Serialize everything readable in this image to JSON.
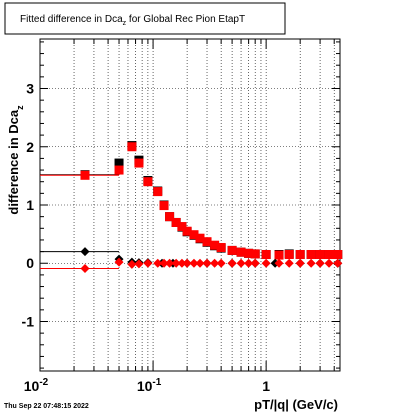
{
  "chart_data": {
    "type": "scatter",
    "title": "Fitted difference in Dca",
    "title_sub": "z",
    "title_suffix": " for Global Rec Pion EtapT",
    "xlabel": "pT/|q| (GeV/c)",
    "ylabel": "difference in Dca",
    "ylabel_sub": "z",
    "x_scale": "log",
    "xlim": [
      0.01,
      4.5
    ],
    "ylim": [
      -1.85,
      3.85
    ],
    "grid": true,
    "x_ticks": [
      {
        "value": 0.01,
        "label": "10",
        "exp": "-2"
      },
      {
        "value": 0.1,
        "label": "10",
        "exp": "-1"
      },
      {
        "value": 1,
        "label": "1",
        "exp": ""
      }
    ],
    "y_ticks": [
      {
        "value": -1,
        "label": "-1"
      },
      {
        "value": 0,
        "label": "0"
      },
      {
        "value": 1,
        "label": "1"
      },
      {
        "value": 2,
        "label": "2"
      },
      {
        "value": 3,
        "label": "3"
      }
    ],
    "series": [
      {
        "color": "#000000",
        "marker": "square",
        "points": [
          {
            "x": 0.025,
            "y": 1.52,
            "xerr_lo": 0.015,
            "xerr_hi": 0.025
          },
          {
            "x": 0.05,
            "y": 1.72
          },
          {
            "x": 0.065,
            "y": 2.02
          },
          {
            "x": 0.075,
            "y": 1.77
          },
          {
            "x": 0.09,
            "y": 1.42
          },
          {
            "x": 0.11,
            "y": 1.24
          },
          {
            "x": 0.125,
            "y": 1.0
          },
          {
            "x": 0.14,
            "y": 0.8
          },
          {
            "x": 0.16,
            "y": 0.7
          },
          {
            "x": 0.18,
            "y": 0.62
          },
          {
            "x": 0.2,
            "y": 0.54
          },
          {
            "x": 0.23,
            "y": 0.48
          },
          {
            "x": 0.26,
            "y": 0.42
          },
          {
            "x": 0.3,
            "y": 0.36
          },
          {
            "x": 0.35,
            "y": 0.3
          },
          {
            "x": 0.4,
            "y": 0.26
          },
          {
            "x": 0.5,
            "y": 0.22
          },
          {
            "x": 0.6,
            "y": 0.19
          },
          {
            "x": 0.7,
            "y": 0.17
          },
          {
            "x": 0.8,
            "y": 0.16
          },
          {
            "x": 1.0,
            "y": 0.15
          },
          {
            "x": 1.3,
            "y": 0.15
          },
          {
            "x": 1.6,
            "y": 0.16
          },
          {
            "x": 2.0,
            "y": 0.15
          },
          {
            "x": 2.5,
            "y": 0.15
          },
          {
            "x": 3.0,
            "y": 0.15
          },
          {
            "x": 3.6,
            "y": 0.15
          },
          {
            "x": 4.3,
            "y": 0.15
          }
        ]
      },
      {
        "color": "#ff0000",
        "marker": "square",
        "points": [
          {
            "x": 0.025,
            "y": 1.51,
            "xerr_lo": 0.015,
            "xerr_hi": 0.025
          },
          {
            "x": 0.05,
            "y": 1.6
          },
          {
            "x": 0.065,
            "y": 2.0
          },
          {
            "x": 0.075,
            "y": 1.72
          },
          {
            "x": 0.09,
            "y": 1.4
          },
          {
            "x": 0.11,
            "y": 1.23
          },
          {
            "x": 0.125,
            "y": 0.99
          },
          {
            "x": 0.14,
            "y": 0.8
          },
          {
            "x": 0.16,
            "y": 0.7
          },
          {
            "x": 0.18,
            "y": 0.63
          },
          {
            "x": 0.2,
            "y": 0.55
          },
          {
            "x": 0.23,
            "y": 0.49
          },
          {
            "x": 0.26,
            "y": 0.43
          },
          {
            "x": 0.3,
            "y": 0.37
          },
          {
            "x": 0.35,
            "y": 0.31
          },
          {
            "x": 0.4,
            "y": 0.27
          },
          {
            "x": 0.5,
            "y": 0.22
          },
          {
            "x": 0.6,
            "y": 0.19
          },
          {
            "x": 0.7,
            "y": 0.17
          },
          {
            "x": 0.8,
            "y": 0.16
          },
          {
            "x": 1.0,
            "y": 0.15
          },
          {
            "x": 1.3,
            "y": 0.14
          },
          {
            "x": 1.6,
            "y": 0.15
          },
          {
            "x": 2.0,
            "y": 0.15
          },
          {
            "x": 2.5,
            "y": 0.15
          },
          {
            "x": 3.0,
            "y": 0.15
          },
          {
            "x": 3.6,
            "y": 0.15
          },
          {
            "x": 4.3,
            "y": 0.15
          }
        ]
      },
      {
        "color": "#000000",
        "marker": "diamond",
        "points": [
          {
            "x": 0.025,
            "y": 0.2,
            "xerr_lo": 0.015,
            "xerr_hi": 0.025
          },
          {
            "x": 0.05,
            "y": 0.07
          },
          {
            "x": 0.065,
            "y": 0.02
          },
          {
            "x": 0.075,
            "y": 0.01
          },
          {
            "x": 0.09,
            "y": 0.01
          },
          {
            "x": 0.12,
            "y": 0.0
          },
          {
            "x": 0.15,
            "y": 0.0
          },
          {
            "x": 0.2,
            "y": 0.0
          },
          {
            "x": 0.3,
            "y": 0.0
          },
          {
            "x": 0.5,
            "y": 0.0
          },
          {
            "x": 0.8,
            "y": 0.0
          },
          {
            "x": 1.2,
            "y": 0.0
          },
          {
            "x": 2.0,
            "y": 0.0
          },
          {
            "x": 3.0,
            "y": 0.0
          },
          {
            "x": 4.3,
            "y": 0.0
          }
        ]
      },
      {
        "color": "#ff0000",
        "marker": "diamond",
        "points": [
          {
            "x": 0.025,
            "y": -0.09,
            "xerr_lo": 0.015,
            "xerr_hi": 0.025
          },
          {
            "x": 0.05,
            "y": 0.02
          },
          {
            "x": 0.065,
            "y": -0.02
          },
          {
            "x": 0.075,
            "y": -0.01
          },
          {
            "x": 0.09,
            "y": 0.0
          },
          {
            "x": 0.11,
            "y": 0.0
          },
          {
            "x": 0.125,
            "y": 0.0
          },
          {
            "x": 0.14,
            "y": 0.0
          },
          {
            "x": 0.16,
            "y": 0.0
          },
          {
            "x": 0.18,
            "y": 0.0
          },
          {
            "x": 0.2,
            "y": 0.0
          },
          {
            "x": 0.23,
            "y": 0.0
          },
          {
            "x": 0.26,
            "y": 0.0
          },
          {
            "x": 0.3,
            "y": 0.0
          },
          {
            "x": 0.35,
            "y": 0.0
          },
          {
            "x": 0.4,
            "y": 0.0
          },
          {
            "x": 0.5,
            "y": 0.0
          },
          {
            "x": 0.6,
            "y": 0.0
          },
          {
            "x": 0.7,
            "y": 0.0
          },
          {
            "x": 0.8,
            "y": 0.0
          },
          {
            "x": 1.0,
            "y": 0.0
          },
          {
            "x": 1.3,
            "y": 0.0
          },
          {
            "x": 1.6,
            "y": 0.0
          },
          {
            "x": 2.0,
            "y": 0.0
          },
          {
            "x": 2.5,
            "y": 0.0
          },
          {
            "x": 3.0,
            "y": 0.0
          },
          {
            "x": 3.6,
            "y": 0.0
          },
          {
            "x": 4.3,
            "y": 0.0
          }
        ]
      }
    ]
  },
  "footer": {
    "timestamp": "Thu Sep 22 07:48:15 2022"
  }
}
